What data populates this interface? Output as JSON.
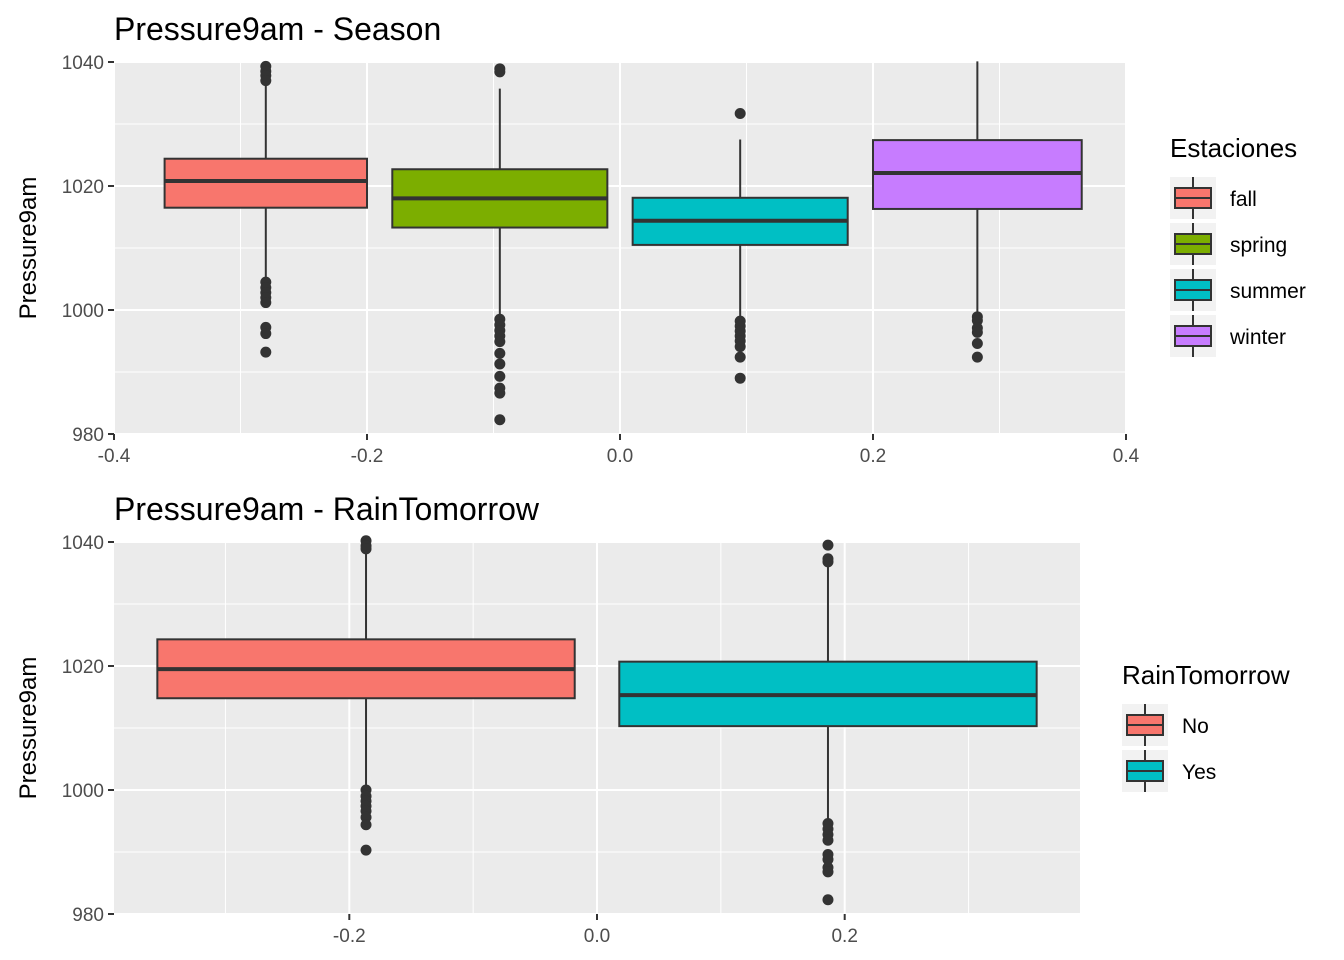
{
  "chart_data": [
    {
      "type": "boxplot",
      "title": "Pressure9am - Season",
      "xlabel": "",
      "ylabel": "Pressure9am",
      "xlim": [
        -0.4,
        0.4
      ],
      "ylim": [
        980,
        1040
      ],
      "x_ticks": [
        "-0.4",
        "-0.2",
        "0.0",
        "0.2",
        "0.4"
      ],
      "y_ticks": [
        "980",
        "1000",
        "1020",
        "1040"
      ],
      "grid": true,
      "legend": {
        "title": "Estaciones",
        "position": "right"
      },
      "series": [
        {
          "name": "fall",
          "color": "#F8766D",
          "x_range": [
            -0.36,
            -0.2
          ],
          "q1": 1016.5,
          "median": 1020.8,
          "q3": 1024.4,
          "whisker_low": 1004.0,
          "whisker_high": 1036.5,
          "outliers": [
            1039.3,
            1038.5,
            1037.8,
            1037.0,
            1004.5,
            1003.6,
            1002.8,
            1002.0,
            1001.2,
            997.2,
            996.2,
            993.2
          ]
        },
        {
          "name": "spring",
          "color": "#7CAE00",
          "x_range": [
            -0.18,
            -0.01
          ],
          "q1": 1013.3,
          "median": 1018.0,
          "q3": 1022.7,
          "whisker_low": 999.0,
          "whisker_high": 1035.7,
          "outliers": [
            1038.9,
            1038.4,
            998.5,
            997.6,
            996.7,
            995.8,
            994.9,
            993.0,
            991.3,
            989.3,
            987.4,
            986.6,
            982.3
          ]
        },
        {
          "name": "summer",
          "color": "#00BFC4",
          "x_range": [
            0.01,
            0.18
          ],
          "q1": 1010.5,
          "median": 1014.4,
          "q3": 1018.1,
          "whisker_low": 998.6,
          "whisker_high": 1027.5,
          "outliers": [
            1031.7,
            998.2,
            997.4,
            996.6,
            995.8,
            995.0,
            994.1,
            992.4,
            989.0
          ]
        },
        {
          "name": "winter",
          "color": "#C77CFF",
          "x_range": [
            0.2,
            0.365
          ],
          "q1": 1016.3,
          "median": 1022.1,
          "q3": 1027.4,
          "whisker_low": 999.2,
          "whisker_high": 1040.1,
          "outliers": [
            998.9,
            998.3,
            997.1,
            996.4,
            994.6,
            992.4
          ]
        }
      ]
    },
    {
      "type": "boxplot",
      "title": "Pressure9am - RainTomorrow",
      "xlabel": "",
      "ylabel": "Pressure9am",
      "xlim": [
        -0.39,
        0.39
      ],
      "ylim": [
        980,
        1040
      ],
      "x_ticks": [
        "-0.2",
        "0.0",
        "0.2"
      ],
      "y_ticks": [
        "980",
        "1000",
        "1020",
        "1040"
      ],
      "grid": true,
      "legend": {
        "title": "RainTomorrow",
        "position": "right"
      },
      "series": [
        {
          "name": "No",
          "color": "#F8766D",
          "x_range": [
            -0.355,
            -0.018
          ],
          "q1": 1014.8,
          "median": 1019.5,
          "q3": 1024.3,
          "whisker_low": 1000.5,
          "whisker_high": 1038.8,
          "outliers": [
            1040.2,
            1039.4,
            1038.9,
            1000.0,
            999.0,
            998.2,
            997.4,
            996.6,
            995.6,
            994.4,
            990.3
          ]
        },
        {
          "name": "Yes",
          "color": "#00BFC4",
          "x_range": [
            0.018,
            0.355
          ],
          "q1": 1010.3,
          "median": 1015.3,
          "q3": 1020.7,
          "whisker_low": 995.0,
          "whisker_high": 1036.5,
          "outliers": [
            1039.5,
            1037.3,
            1036.8,
            994.6,
            993.7,
            992.8,
            991.9,
            989.6,
            988.8,
            987.5,
            986.8,
            982.3
          ]
        }
      ]
    }
  ]
}
